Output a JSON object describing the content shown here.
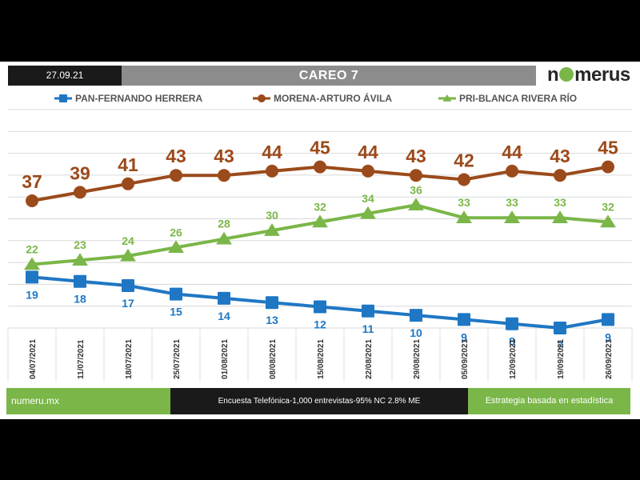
{
  "header": {
    "date": "27.09.21",
    "title": "CAREO 7"
  },
  "logo": {
    "text_before": "n",
    "text_after": "merus",
    "color_accent": "#7ab648"
  },
  "footer": {
    "site": "numeru.mx",
    "survey": "Encuesta Telefónica-1,000 entrevistas-95% NC 2.8% ME",
    "tagline": "Estrategia basada en estadística"
  },
  "chart_data": {
    "type": "line",
    "title": "CAREO 7",
    "categories": [
      "04/07/2021",
      "11/07/2021",
      "18/07/2021",
      "25/07/2021",
      "01/08/2021",
      "08/08/2021",
      "15/08/2021",
      "22/08/2021",
      "29/08/2021",
      "05/09/2021",
      "12/09/2021",
      "19/09/2021",
      "26/09/2021"
    ],
    "ylim": [
      0,
      48
    ],
    "grid": true,
    "legend_position": "top",
    "series": [
      {
        "name": "PAN-FERNANDO HERRERA",
        "color": "#1f77c4",
        "marker": "square",
        "label_position": "below",
        "values": [
          19,
          18,
          17,
          15,
          14,
          13,
          12,
          11,
          10,
          9,
          8,
          7,
          9
        ]
      },
      {
        "name": "MORENA-ARTURO ÁVILA",
        "color": "#9b4a1b",
        "marker": "circle",
        "label_position": "above",
        "values": [
          37,
          39,
          41,
          43,
          43,
          44,
          45,
          44,
          43,
          42,
          44,
          43,
          45
        ]
      },
      {
        "name": "PRI-BLANCA RIVERA RÍO",
        "color": "#7ab648",
        "marker": "triangle",
        "label_position": "above",
        "values": [
          22,
          23,
          24,
          26,
          28,
          30,
          32,
          34,
          36,
          33,
          33,
          33,
          32
        ]
      }
    ]
  }
}
